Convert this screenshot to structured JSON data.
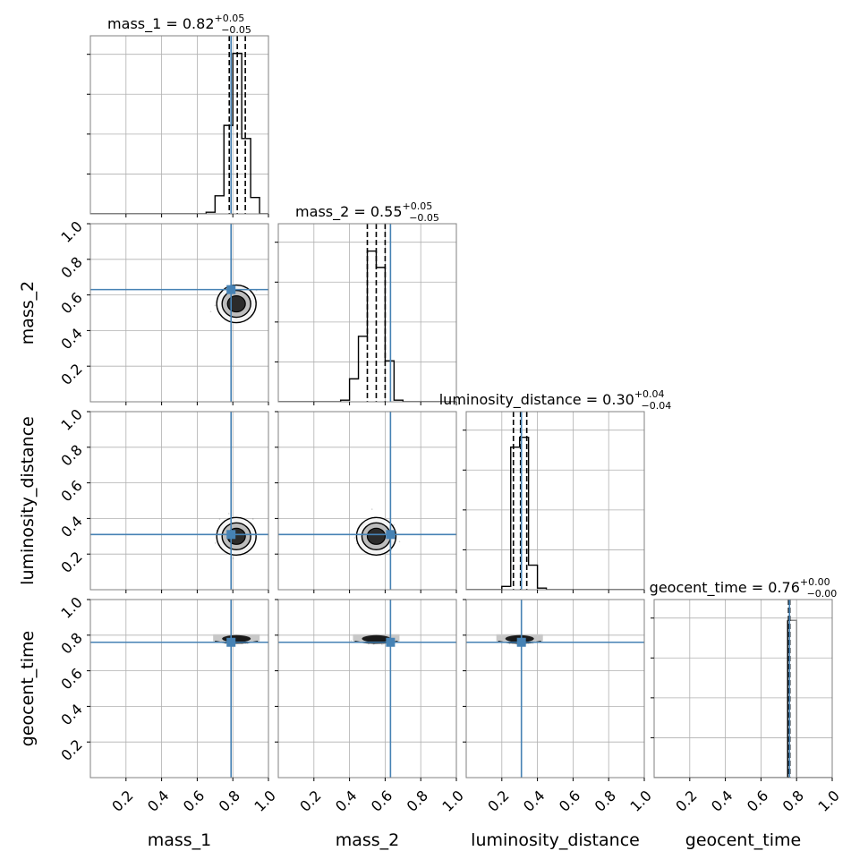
{
  "colors": {
    "truth": "#4682b4",
    "hist": "#000000",
    "grid": "#b0b0b0",
    "frame": "#808080"
  },
  "chart_data": {
    "type": "corner",
    "parameters": [
      "mass_1",
      "mass_2",
      "luminosity_distance",
      "geocent_time"
    ],
    "axis_labels": [
      "mass_1",
      "mass_2",
      "luminosity_distance",
      "geocent_time"
    ],
    "titles": [
      {
        "name": "mass_1",
        "median": "0.82",
        "plus": "+0.05",
        "minus": "−0.05"
      },
      {
        "name": "mass_2",
        "median": "0.55",
        "plus": "+0.05",
        "minus": "−0.05"
      },
      {
        "name": "luminosity_distance",
        "median": "0.30",
        "plus": "+0.04",
        "minus": "−0.04"
      },
      {
        "name": "geocent_time",
        "median": "0.76",
        "plus": "+0.00",
        "minus": "−0.00"
      }
    ],
    "axis_range": [
      0,
      1
    ],
    "ticks": [
      0.2,
      0.4,
      0.6,
      0.8,
      1.0
    ],
    "tick_labels": [
      "0.2",
      "0.4",
      "0.6",
      "0.8",
      "1.0"
    ],
    "truths": [
      0.79,
      0.63,
      0.31,
      0.76
    ],
    "quantiles": [
      [
        0.78,
        0.825,
        0.87
      ],
      [
        0.5,
        0.55,
        0.6
      ],
      [
        0.265,
        0.305,
        0.34
      ],
      [
        0.755,
        0.758,
        0.762
      ]
    ],
    "histograms": [
      {
        "bin_edges": [
          0.65,
          0.7,
          0.75,
          0.8,
          0.85,
          0.9,
          0.95
        ],
        "heights": [
          0.01,
          0.11,
          0.54,
          0.98,
          0.46,
          0.1
        ]
      },
      {
        "bin_edges": [
          0.35,
          0.4,
          0.45,
          0.5,
          0.55,
          0.6,
          0.65,
          0.7
        ],
        "heights": [
          0.01,
          0.14,
          0.4,
          0.92,
          0.82,
          0.25,
          0.01
        ]
      },
      {
        "bin_edges": [
          0.2,
          0.25,
          0.3,
          0.35,
          0.4,
          0.45
        ],
        "heights": [
          0.02,
          0.87,
          0.93,
          0.15,
          0.01
        ]
      },
      {
        "bin_edges": [
          0.75,
          0.8
        ],
        "heights": [
          0.96
        ]
      }
    ],
    "density_centers": {
      "mass_1|mass_2": [
        0.82,
        0.55
      ],
      "mass_1|luminosity_distance": [
        0.82,
        0.3
      ],
      "mass_2|luminosity_distance": [
        0.55,
        0.3
      ],
      "mass_1|geocent_time": [
        0.82,
        0.77
      ],
      "mass_2|geocent_time": [
        0.55,
        0.77
      ],
      "luminosity_distance|geocent_time": [
        0.3,
        0.77
      ]
    },
    "grid": true
  }
}
